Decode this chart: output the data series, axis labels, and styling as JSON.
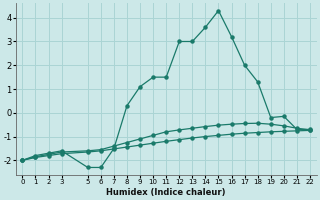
{
  "xlabel": "Humidex (Indice chaleur)",
  "background_color": "#cce8e8",
  "grid_color": "#aad4d4",
  "line_color": "#1a7a6a",
  "xlim": [
    -0.5,
    22.5
  ],
  "ylim": [
    -2.6,
    4.6
  ],
  "xticks": [
    0,
    1,
    2,
    3,
    5,
    6,
    7,
    8,
    9,
    10,
    11,
    12,
    13,
    14,
    15,
    16,
    17,
    18,
    19,
    20,
    21,
    22
  ],
  "yticks": [
    -2,
    -1,
    0,
    1,
    2,
    3,
    4
  ],
  "series3_x": [
    0,
    1,
    2,
    3,
    5,
    6,
    7,
    8,
    9,
    10,
    11,
    12,
    13,
    14,
    15,
    16,
    17,
    18,
    19,
    20,
    21,
    22
  ],
  "series3_y": [
    -2.0,
    -1.8,
    -1.7,
    -1.6,
    -2.3,
    -2.3,
    -1.5,
    0.3,
    1.1,
    1.5,
    1.5,
    3.0,
    3.0,
    3.6,
    4.3,
    3.2,
    2.0,
    1.3,
    -0.2,
    -0.15,
    -0.7,
    -0.7
  ],
  "series2_x": [
    0,
    1,
    2,
    3,
    5,
    6,
    7,
    8,
    9,
    10,
    11,
    12,
    13,
    14,
    15,
    16,
    17,
    18,
    19,
    20,
    21,
    22
  ],
  "series2_y": [
    -2.0,
    -1.85,
    -1.75,
    -1.65,
    -1.6,
    -1.55,
    -1.4,
    -1.25,
    -1.1,
    -0.95,
    -0.8,
    -0.72,
    -0.65,
    -0.58,
    -0.52,
    -0.48,
    -0.45,
    -0.44,
    -0.48,
    -0.55,
    -0.65,
    -0.72
  ],
  "series1_x": [
    0,
    1,
    2,
    3,
    5,
    6,
    7,
    8,
    9,
    10,
    11,
    12,
    13,
    14,
    15,
    16,
    17,
    18,
    19,
    20,
    21,
    22
  ],
  "series1_y": [
    -2.0,
    -1.88,
    -1.8,
    -1.72,
    -1.65,
    -1.6,
    -1.52,
    -1.44,
    -1.36,
    -1.28,
    -1.2,
    -1.13,
    -1.06,
    -1.0,
    -0.95,
    -0.9,
    -0.86,
    -0.83,
    -0.8,
    -0.78,
    -0.76,
    -0.74
  ]
}
